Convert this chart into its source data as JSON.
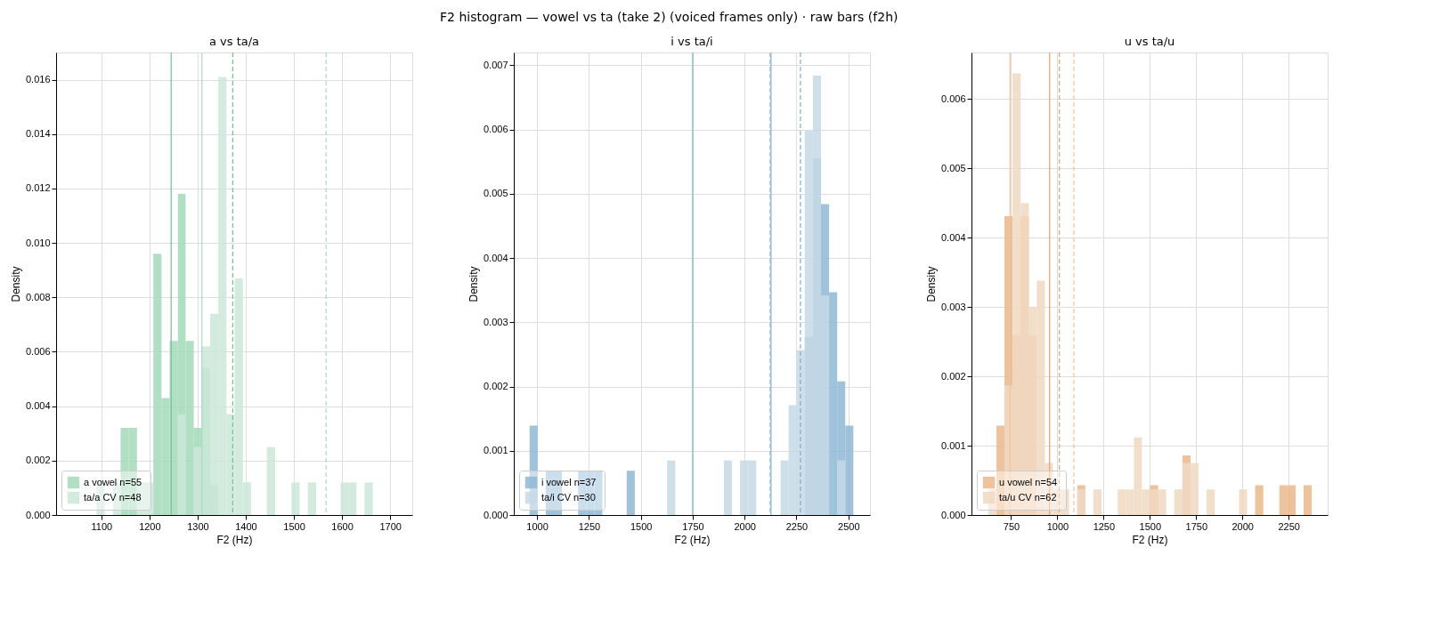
{
  "chart_data": [
    {
      "type": "histogram",
      "title": "a vs ta/a",
      "xlabel": "F2 (Hz)",
      "ylabel": "Density",
      "annotations": [
        "F2 histogram — vowel vs ta (take 2) (voiced frames only) · raw bars (f2h)"
      ],
      "bins": [
        1090,
        1107,
        1124,
        1140,
        1157,
        1174,
        1191,
        1208,
        1225,
        1242,
        1259,
        1275,
        1292,
        1309,
        1326,
        1343,
        1360,
        1377,
        1394,
        1411,
        1444,
        1461,
        1495,
        1512,
        1529,
        1546,
        1597,
        1613,
        1630,
        1647,
        1664
      ],
      "series": [
        {
          "name": "a vowel  n=55",
          "color": "#a3d9b8",
          "values": [
            0,
            0,
            0,
            0.0032,
            0.0032,
            0,
            0,
            0.0096,
            0.0043,
            0.0064,
            0.0118,
            0.0064,
            0.0032,
            0.0054,
            0.0011,
            0,
            0,
            0,
            0,
            0,
            0,
            0,
            0,
            0,
            0,
            0,
            0,
            0,
            0,
            0
          ]
        },
        {
          "name": "ta/a CV  n=48",
          "color": "#cbe8d8",
          "values": [
            0.0012,
            0,
            0.0012,
            0,
            0,
            0.0012,
            0.0012,
            0,
            0,
            0,
            0.0037,
            0,
            0.0025,
            0.0062,
            0.0074,
            0.0161,
            0.0037,
            0.0087,
            0.0012,
            0,
            0.0025,
            0,
            0.0012,
            0,
            0.0012,
            0,
            0.0012,
            0.0012,
            0,
            0.0012
          ]
        }
      ],
      "ref_lines": [
        {
          "axis": "x",
          "value": 1245,
          "color": "#6cc391",
          "line_style": "solid"
        },
        {
          "axis": "x",
          "value": 1309,
          "color": "#a8dcc0",
          "line_style": "solid"
        },
        {
          "axis": "x",
          "value": 1373,
          "color": "#6cc391",
          "line_style": "dashed"
        },
        {
          "axis": "x",
          "value": 1567,
          "color": "#a8dcc0",
          "line_style": "dashed"
        }
      ],
      "xlim": [
        1006,
        1746
      ],
      "xticks": [
        1100,
        1200,
        1300,
        1400,
        1500,
        1600,
        1700
      ],
      "ylim": [
        0,
        0.017
      ],
      "yticks": [
        {
          "value": 0,
          "label": "0.000"
        },
        {
          "value": 0.002,
          "label": "0.002"
        },
        {
          "value": 0.004,
          "label": "0.004"
        },
        {
          "value": 0.006,
          "label": "0.006"
        },
        {
          "value": 0.008,
          "label": "0.008"
        },
        {
          "value": 0.01,
          "label": "0.010"
        },
        {
          "value": 0.012,
          "label": "0.012"
        },
        {
          "value": 0.014,
          "label": "0.014"
        },
        {
          "value": 0.016,
          "label": "0.016"
        }
      ],
      "grid": true,
      "legend": "bottom left"
    },
    {
      "type": "histogram",
      "title": "i vs ta/i",
      "xlabel": "F2 (Hz)",
      "ylabel": "Density",
      "bins": [
        964,
        1003,
        1042,
        1081,
        1120,
        1198,
        1237,
        1276,
        1315,
        1432,
        1471,
        1627,
        1666,
        1900,
        1939,
        1978,
        2017,
        2056,
        2173,
        2212,
        2251,
        2290,
        2329,
        2368,
        2407,
        2446,
        2485,
        2524
      ],
      "series": [
        {
          "name": "i vowel  n=37",
          "color": "#8fb8d6",
          "values": [
            0.00139,
            0,
            0.00069,
            0.00069,
            0,
            0.00069,
            0.00069,
            0.00069,
            0,
            0.00069,
            0,
            0,
            0,
            0,
            0,
            0,
            0,
            0,
            0,
            0,
            0,
            0.00277,
            0.00555,
            0.00484,
            0.00347,
            0.00208,
            0.00139
          ]
        },
        {
          "name": "ta/i CV  n=30",
          "color": "#c6d9e6",
          "values": [
            0,
            0,
            0,
            0,
            0,
            0,
            0,
            0,
            0,
            0,
            0,
            0.00085,
            0,
            0.00085,
            0,
            0.00085,
            0.00085,
            0,
            0.00085,
            0.00171,
            0.00257,
            0.00598,
            0.00684,
            0.00342,
            0,
            0.00085,
            0
          ]
        }
      ],
      "ref_lines": [
        {
          "axis": "x",
          "value": 1750,
          "color": "#7aaed6",
          "line_style": "solid"
        },
        {
          "axis": "x",
          "value": 2127,
          "color": "#7aaed6",
          "line_style": "solid"
        },
        {
          "axis": "x",
          "value": 2122,
          "color": "#a9cae3",
          "line_style": "dashed"
        },
        {
          "axis": "x",
          "value": 2269,
          "color": "#7aaed6",
          "line_style": "dashed"
        }
      ],
      "xlim": [
        888,
        2604
      ],
      "xticks": [
        1000,
        1250,
        1500,
        1750,
        2000,
        2250,
        2500
      ],
      "ylim": [
        0,
        0.0072
      ],
      "yticks": [
        {
          "value": 0,
          "label": "0.000"
        },
        0.001,
        0.002,
        0.003,
        0.004,
        0.005,
        0.006,
        0.007
      ],
      "grid": true,
      "legend": "bottom left"
    },
    {
      "type": "histogram",
      "title": "u vs ta/u",
      "xlabel": "F2 (Hz)",
      "ylabel": "Density",
      "bins": [
        627,
        671,
        714,
        758,
        802,
        846,
        889,
        933,
        977,
        1020,
        1064,
        1108,
        1151,
        1195,
        1239,
        1326,
        1370,
        1414,
        1457,
        1501,
        1545,
        1588,
        1632,
        1676,
        1720,
        1763,
        1807,
        1851,
        1982,
        2025,
        2069,
        2113,
        2200,
        2244,
        2288,
        2331,
        2375
      ],
      "series": [
        {
          "name": "u vowel  n=54",
          "color": "#ebb98a",
          "values": [
            0,
            0.00129,
            0.00431,
            0.00259,
            0.00431,
            0.00259,
            0,
            0,
            0,
            0,
            0,
            0.00043,
            0,
            0,
            0,
            0,
            0,
            0,
            0,
            0.00043,
            0,
            0,
            0,
            0.00086,
            0,
            0,
            0,
            0,
            0,
            0,
            0.00043,
            0,
            0.00043,
            0.00043,
            0,
            0.00043
          ]
        },
        {
          "name": "ta/u CV  n=62",
          "color": "#f0d9c2",
          "values": [
            0.00037,
            0,
            0.00187,
            0.00637,
            0.0045,
            0.003,
            0.00338,
            0.00075,
            0.00037,
            0.00037,
            0,
            0.00037,
            0,
            0.00037,
            0,
            0.00037,
            0.00037,
            0.00112,
            0.00037,
            0.00037,
            0.00037,
            0,
            0.00037,
            0.00075,
            0.00075,
            0,
            0.00037,
            0,
            0.00037,
            0,
            0,
            0,
            0,
            0,
            0,
            0
          ]
        }
      ],
      "ref_lines": [
        {
          "axis": "x",
          "value": 744,
          "color": "#f0c49c",
          "line_style": "solid"
        },
        {
          "axis": "x",
          "value": 958,
          "color": "#e8a366",
          "line_style": "solid"
        },
        {
          "axis": "x",
          "value": 1011,
          "color": "#e8a366",
          "line_style": "dashed"
        },
        {
          "axis": "x",
          "value": 1089,
          "color": "#f0c49c",
          "line_style": "dashed"
        }
      ],
      "xlim": [
        536,
        2461
      ],
      "xticks": [
        750,
        1000,
        1250,
        1500,
        1750,
        2000,
        2250
      ],
      "ylim": [
        0,
        0.00667
      ],
      "yticks": [
        {
          "value": 0,
          "label": "0.000"
        },
        0.001,
        0.002,
        0.003,
        0.004,
        0.005,
        0.006
      ],
      "grid": true,
      "legend": "bottom left"
    }
  ]
}
